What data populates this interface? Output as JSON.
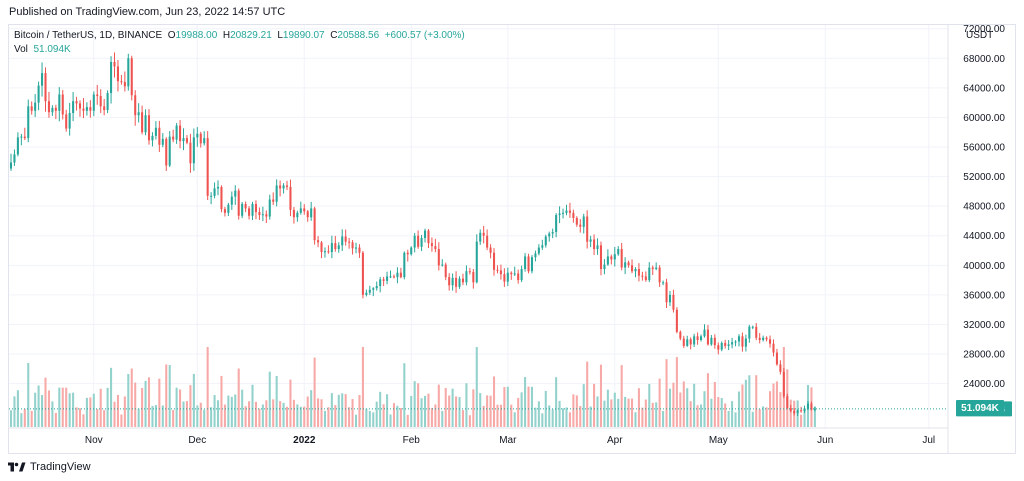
{
  "header": {
    "published": "Published on TradingView.com, Jun 23, 2022 14:57 UTC"
  },
  "legend": {
    "symbol": "Bitcoin / TetherUS, 1D, BINANCE",
    "open_label": "O",
    "open": "19988.00",
    "high_label": "H",
    "high": "20829.21",
    "low_label": "L",
    "low": "19890.07",
    "close_label": "C",
    "close": "20588.56",
    "change": "+600.57 (+3.00%)"
  },
  "volume_legend": {
    "label": "Vol",
    "value": "51.094K"
  },
  "currency": "USDT",
  "footer": {
    "brand": "TradingView",
    "logo_icon": "tradingview-logo-icon"
  },
  "colors": {
    "up": "#26a69a",
    "down": "#ef5350",
    "up_volume": "#93d2cc",
    "down_volume": "#f7a9a7",
    "grid": "#f0f3fa"
  },
  "chart_data": {
    "type": "candlestick",
    "symbol": "Bitcoin / TetherUS, 1D, BINANCE",
    "y_ticks": [
      "24000.00",
      "28000.00",
      "32000.00",
      "36000.00",
      "40000.00",
      "44000.00",
      "48000.00",
      "52000.00",
      "56000.00",
      "60000.00",
      "64000.00",
      "68000.00",
      "72000.00"
    ],
    "y_range": [
      18000,
      72500
    ],
    "last_price": "20588.56",
    "last_volume": "51.094K",
    "x_ticks": [
      {
        "label": "Nov",
        "date": "2021-11-01"
      },
      {
        "label": "Dec",
        "date": "2021-12-01"
      },
      {
        "label": "2022",
        "date": "2022-01-01"
      },
      {
        "label": "Feb",
        "date": "2022-02-01"
      },
      {
        "label": "Mar",
        "date": "2022-03-01"
      },
      {
        "label": "Apr",
        "date": "2022-04-01"
      },
      {
        "label": "May",
        "date": "2022-05-01"
      },
      {
        "label": "Jun",
        "date": "2022-06-01"
      },
      {
        "label": "Jul",
        "date": "2022-07-01"
      }
    ],
    "start_date": "2021-10-08",
    "end_date": "2022-06-23",
    "daily_closes": [
      53900,
      55000,
      57300,
      57400,
      57200,
      61500,
      60900,
      62000,
      64300,
      66000,
      62200,
      60700,
      61300,
      60900,
      63100,
      60400,
      58500,
      60600,
      62200,
      61900,
      61200,
      60900,
      61400,
      60900,
      63100,
      62900,
      61500,
      61000,
      63300,
      67500,
      66900,
      64900,
      64800,
      64200,
      68000,
      63000,
      60300,
      60700,
      58000,
      60300,
      56900,
      57500,
      58600,
      56300,
      57100,
      53500,
      57400,
      57000,
      58900,
      56800,
      57200,
      56600,
      53800,
      57300,
      57800,
      56500,
      57200,
      49400,
      49400,
      50400,
      50600,
      47600,
      47100,
      48200,
      49300,
      50100,
      46700,
      48300,
      47700,
      46700,
      48300,
      47200,
      46800,
      46900,
      46600,
      48900,
      48600,
      50800,
      50400,
      50800,
      50600,
      47500,
      46500,
      47100,
      47700,
      47300,
      46500,
      47700,
      43400,
      43100,
      41800,
      41900,
      41800,
      43000,
      42200,
      42700,
      43900,
      43200,
      43100,
      42300,
      42400,
      41700,
      36000,
      36300,
      36700,
      36900,
      37200,
      38100,
      37900,
      38500,
      38500,
      38400,
      39000,
      38400,
      41700,
      41500,
      42400,
      44000,
      42500,
      43700,
      44700,
      43000,
      42600,
      42200,
      40000,
      40100,
      38400,
      37300,
      38300,
      37100,
      38200,
      37700,
      39200,
      39100,
      37700,
      43200,
      44400,
      44000,
      42400,
      41700,
      39400,
      39300,
      38800,
      37800,
      39000,
      38800,
      38900,
      38000,
      39500,
      41200,
      39200,
      41100,
      41600,
      42400,
      42700,
      43900,
      44300,
      44500,
      46800,
      47000,
      47100,
      47400,
      47100,
      46400,
      45500,
      45200,
      46600,
      43200,
      43500,
      42200,
      42700,
      39500,
      40100,
      41200,
      40800,
      41500,
      42200,
      39700,
      40400,
      40000,
      39200,
      39500,
      38600,
      38500,
      38000,
      39700,
      39500,
      39700,
      37700,
      37700,
      35000,
      36000,
      34000,
      31000,
      30100,
      29100,
      30000,
      29300,
      30400,
      29900,
      30400,
      31300,
      29300,
      30200,
      29200,
      28600,
      29500,
      29100,
      29300,
      29600,
      29700,
      30400,
      29000,
      30100,
      31700,
      31700,
      30200,
      29900,
      30200,
      30000,
      29400,
      28200,
      26600,
      25600,
      22300,
      20700,
      20300,
      20000,
      20400,
      20300,
      20600,
      21300,
      20500,
      20590
    ]
  }
}
